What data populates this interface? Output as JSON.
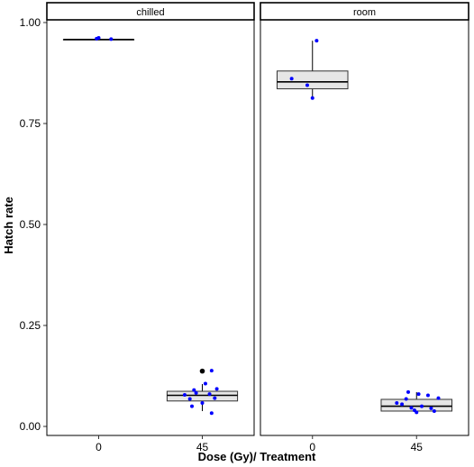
{
  "chart_data": {
    "type": "boxplot",
    "xlabel": "Dose (Gy)/ Treatment",
    "ylabel": "Hatch rate",
    "ylim": [
      0,
      1.0
    ],
    "y_ticks": [
      {
        "value": 0.0,
        "label": "0.00"
      },
      {
        "value": 0.25,
        "label": "0.25"
      },
      {
        "value": 0.5,
        "label": "0.50"
      },
      {
        "value": 0.75,
        "label": "0.75"
      },
      {
        "value": 1.0,
        "label": "1.00"
      }
    ],
    "grid": false,
    "colors": {
      "points": "#0000ff",
      "box_fill": "#e6e6e6",
      "outlier": "#000000",
      "strip_fill": "#ffffff"
    },
    "facets": [
      {
        "label": "chilled",
        "categories": [
          "0",
          "45"
        ],
        "boxes": [
          {
            "category": "0",
            "q1": 0.958,
            "median": 0.958,
            "q3": 0.958,
            "whisker_low": 0.958,
            "whisker_high": 0.958,
            "outliers": [],
            "points": [
              {
                "jx": -0.02,
                "y": 0.96
              },
              {
                "jx": 0.0,
                "y": 0.962
              },
              {
                "jx": 0.12,
                "y": 0.959
              }
            ]
          },
          {
            "category": "45",
            "q1": 0.063,
            "median": 0.077,
            "q3": 0.087,
            "whisker_low": 0.038,
            "whisker_high": 0.105,
            "outliers": [
              0.137
            ],
            "points": [
              {
                "jx": -0.17,
                "y": 0.078
              },
              {
                "jx": -0.12,
                "y": 0.068
              },
              {
                "jx": -0.08,
                "y": 0.09
              },
              {
                "jx": -0.1,
                "y": 0.05
              },
              {
                "jx": -0.06,
                "y": 0.083
              },
              {
                "jx": 0.0,
                "y": 0.058
              },
              {
                "jx": 0.03,
                "y": 0.106
              },
              {
                "jx": 0.07,
                "y": 0.08
              },
              {
                "jx": 0.09,
                "y": 0.138
              },
              {
                "jx": 0.12,
                "y": 0.07
              },
              {
                "jx": 0.14,
                "y": 0.093
              },
              {
                "jx": 0.09,
                "y": 0.033
              }
            ]
          }
        ]
      },
      {
        "label": "room",
        "categories": [
          "0",
          "45"
        ],
        "boxes": [
          {
            "category": "0",
            "q1": 0.836,
            "median": 0.853,
            "q3": 0.88,
            "whisker_low": 0.812,
            "whisker_high": 0.955,
            "outliers": [],
            "points": [
              {
                "jx": -0.2,
                "y": 0.861
              },
              {
                "jx": -0.05,
                "y": 0.845
              },
              {
                "jx": 0.0,
                "y": 0.813
              },
              {
                "jx": 0.04,
                "y": 0.955
              }
            ]
          },
          {
            "category": "45",
            "q1": 0.038,
            "median": 0.05,
            "q3": 0.067,
            "whisker_low": 0.032,
            "whisker_high": 0.085,
            "outliers": [],
            "points": [
              {
                "jx": -0.19,
                "y": 0.058
              },
              {
                "jx": -0.14,
                "y": 0.055
              },
              {
                "jx": -0.1,
                "y": 0.068
              },
              {
                "jx": -0.08,
                "y": 0.085
              },
              {
                "jx": -0.05,
                "y": 0.046
              },
              {
                "jx": -0.02,
                "y": 0.04
              },
              {
                "jx": 0.0,
                "y": 0.035
              },
              {
                "jx": 0.02,
                "y": 0.08
              },
              {
                "jx": 0.05,
                "y": 0.05
              },
              {
                "jx": 0.11,
                "y": 0.077
              },
              {
                "jx": 0.14,
                "y": 0.045
              },
              {
                "jx": 0.17,
                "y": 0.038
              },
              {
                "jx": 0.21,
                "y": 0.07
              }
            ]
          }
        ]
      }
    ]
  }
}
